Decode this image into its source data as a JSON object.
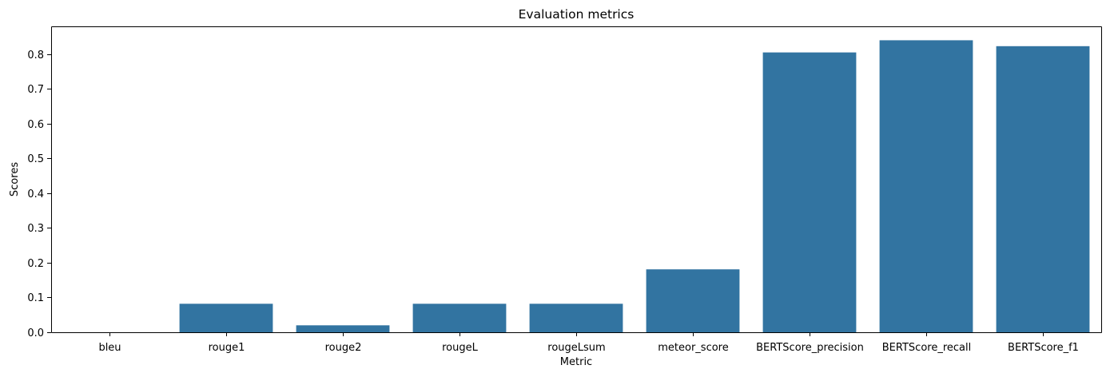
{
  "chart_data": {
    "type": "bar",
    "title": "Evaluation metrics",
    "xlabel": "Metric",
    "ylabel": "Scores",
    "categories": [
      "bleu",
      "rouge1",
      "rouge2",
      "rougeL",
      "rougeLsum",
      "meteor_score",
      "BERTScore_precision",
      "BERTScore_recall",
      "BERTScore_f1"
    ],
    "values": [
      0.0,
      0.082,
      0.02,
      0.082,
      0.082,
      0.181,
      0.805,
      0.84,
      0.823
    ],
    "ylim": [
      0,
      0.88
    ],
    "yticks": [
      0.0,
      0.1,
      0.2,
      0.3,
      0.4,
      0.5,
      0.6,
      0.7,
      0.8
    ],
    "ytick_labels": [
      "0.0",
      "0.1",
      "0.2",
      "0.3",
      "0.4",
      "0.5",
      "0.6",
      "0.7",
      "0.8"
    ],
    "grid": false,
    "legend": false,
    "bar_color": "#3274a1"
  }
}
